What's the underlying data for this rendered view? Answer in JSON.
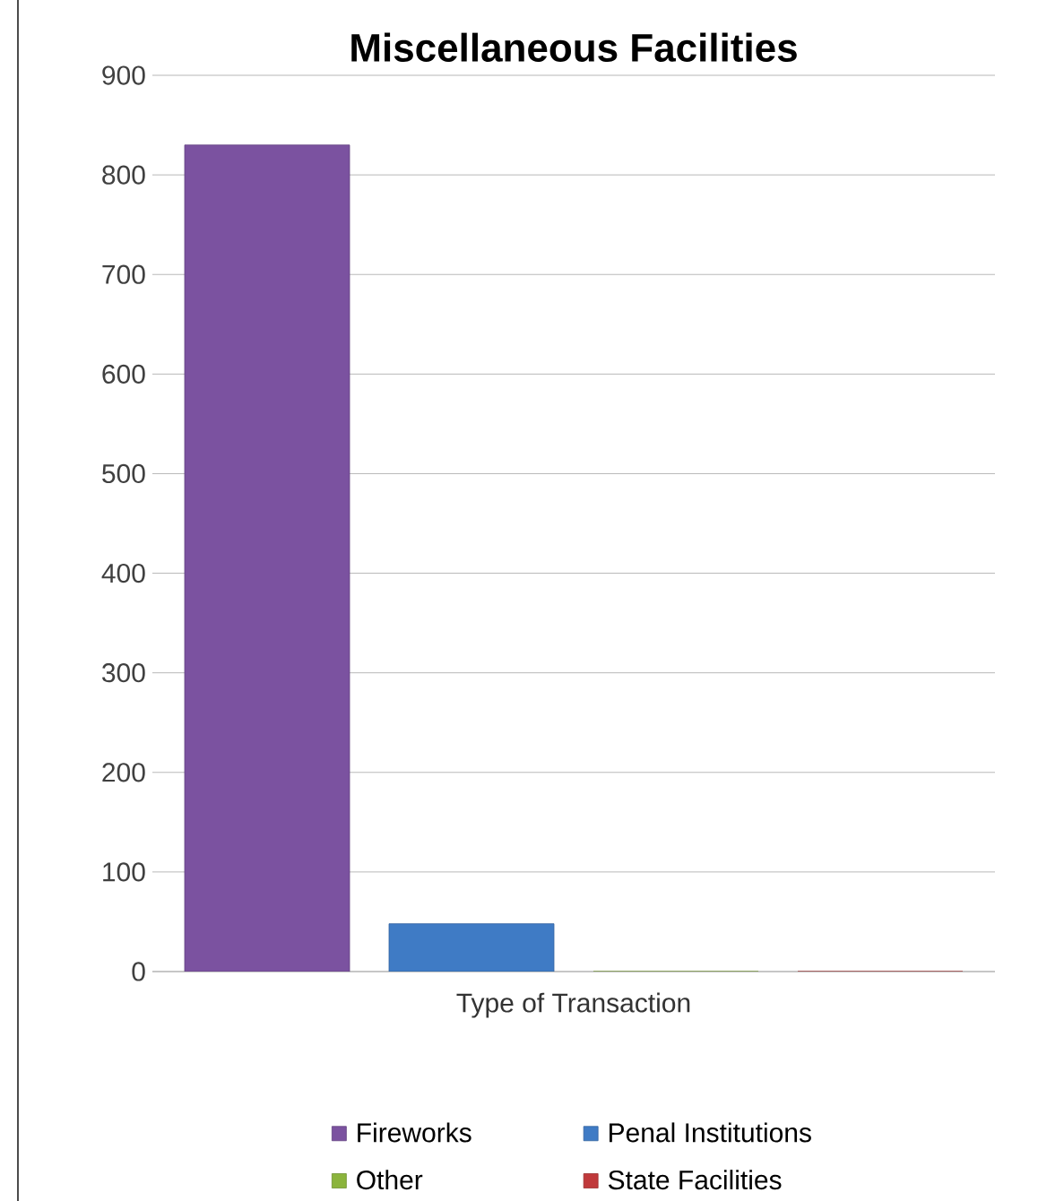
{
  "chart_data": {
    "type": "bar",
    "title": "Miscellaneous Facilities",
    "xlabel": "Type of Transaction",
    "categories": [
      null
    ],
    "series": [
      {
        "name": "Fireworks",
        "color": "#7b52a0",
        "values": [
          830
        ]
      },
      {
        "name": "Penal Institutions",
        "color": "#3f7bc5",
        "values": [
          48
        ]
      },
      {
        "name": "Other",
        "color": "#8bb43c",
        "values": [
          0
        ]
      },
      {
        "name": "State Facilities",
        "color": "#c0393b",
        "values": [
          0
        ]
      }
    ],
    "ylim": [
      0,
      900
    ],
    "yticks": [
      0,
      100,
      200,
      300,
      400,
      500,
      600,
      700,
      800,
      900
    ],
    "grid": "y",
    "legend": "bottom"
  }
}
